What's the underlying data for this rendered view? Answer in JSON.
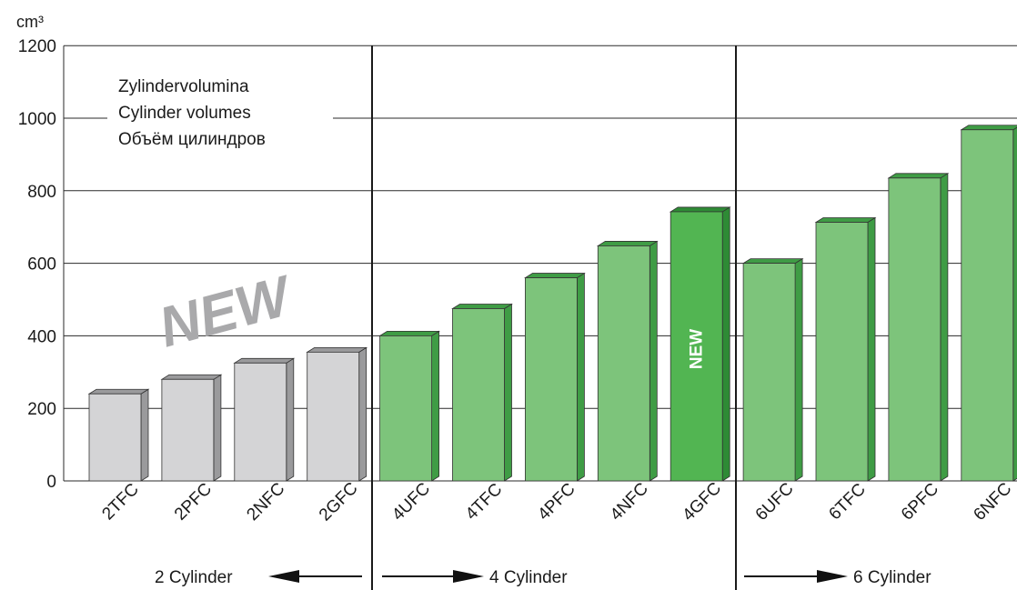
{
  "chart_data": {
    "type": "bar",
    "unit_label": "cm³",
    "title_lines": [
      "Zylindervolumina",
      "Cylinder volumes",
      "Объём цилиндров"
    ],
    "ylim": [
      0,
      1200
    ],
    "yticks": [
      "0",
      "200",
      "400",
      "600",
      "800",
      "1000",
      "1200"
    ],
    "grid": true,
    "categories": [
      "2TFC",
      "2PFC",
      "2NFC",
      "2GFC",
      "4UFC",
      "4TFC",
      "4PFC",
      "4NFC",
      "4GFC",
      "6UFC",
      "6TFC",
      "6PFC",
      "6NFC"
    ],
    "values": [
      240,
      280,
      325,
      355,
      400,
      475,
      560,
      648,
      742,
      600,
      713,
      835,
      968
    ],
    "groups": [
      {
        "label": "2 Cylinder",
        "categories": [
          "2TFC",
          "2PFC",
          "2NFC",
          "2GFC"
        ],
        "arrow": "left"
      },
      {
        "label": "4 Cylinder",
        "categories": [
          "4UFC",
          "4TFC",
          "4PFC",
          "4NFC",
          "4GFC"
        ],
        "arrow": "right"
      },
      {
        "label": "6 Cylinder",
        "categories": [
          "6UFC",
          "6TFC",
          "6PFC",
          "6NFC"
        ],
        "arrow": "right"
      }
    ],
    "annotations": [
      {
        "text": "NEW",
        "target": "2-cylinder group"
      },
      {
        "text": "NEW",
        "target": "4GFC"
      }
    ],
    "colors": {
      "two_cyl_bar": "#d4d4d6",
      "two_cyl_side": "#9a9a9c",
      "four_six_bar": "#7dc47b",
      "four_six_side": "#3f9c45",
      "highlight_bar": "#52b552",
      "highlight_side": "#2e8b35",
      "new_text": "#a9a9ab"
    }
  }
}
